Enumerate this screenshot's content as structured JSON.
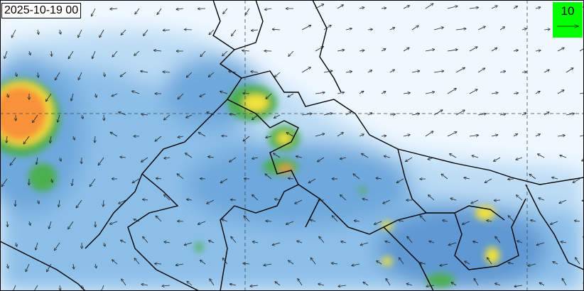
{
  "map": {
    "timestamp": "2025-10-19 00",
    "legend": {
      "value": "10",
      "color": "#00ff00",
      "icon": "arrow-right-icon"
    },
    "colors": {
      "background": "#f0f8ff",
      "light_blue": "#bcdcf4",
      "mid_blue": "#6ea8dc",
      "dark_blue": "#3c7cc8",
      "green": "#4caf50",
      "yellow": "#f2e23a",
      "orange": "#f7923a",
      "red": "#e04a2a",
      "border": "#000000"
    }
  }
}
